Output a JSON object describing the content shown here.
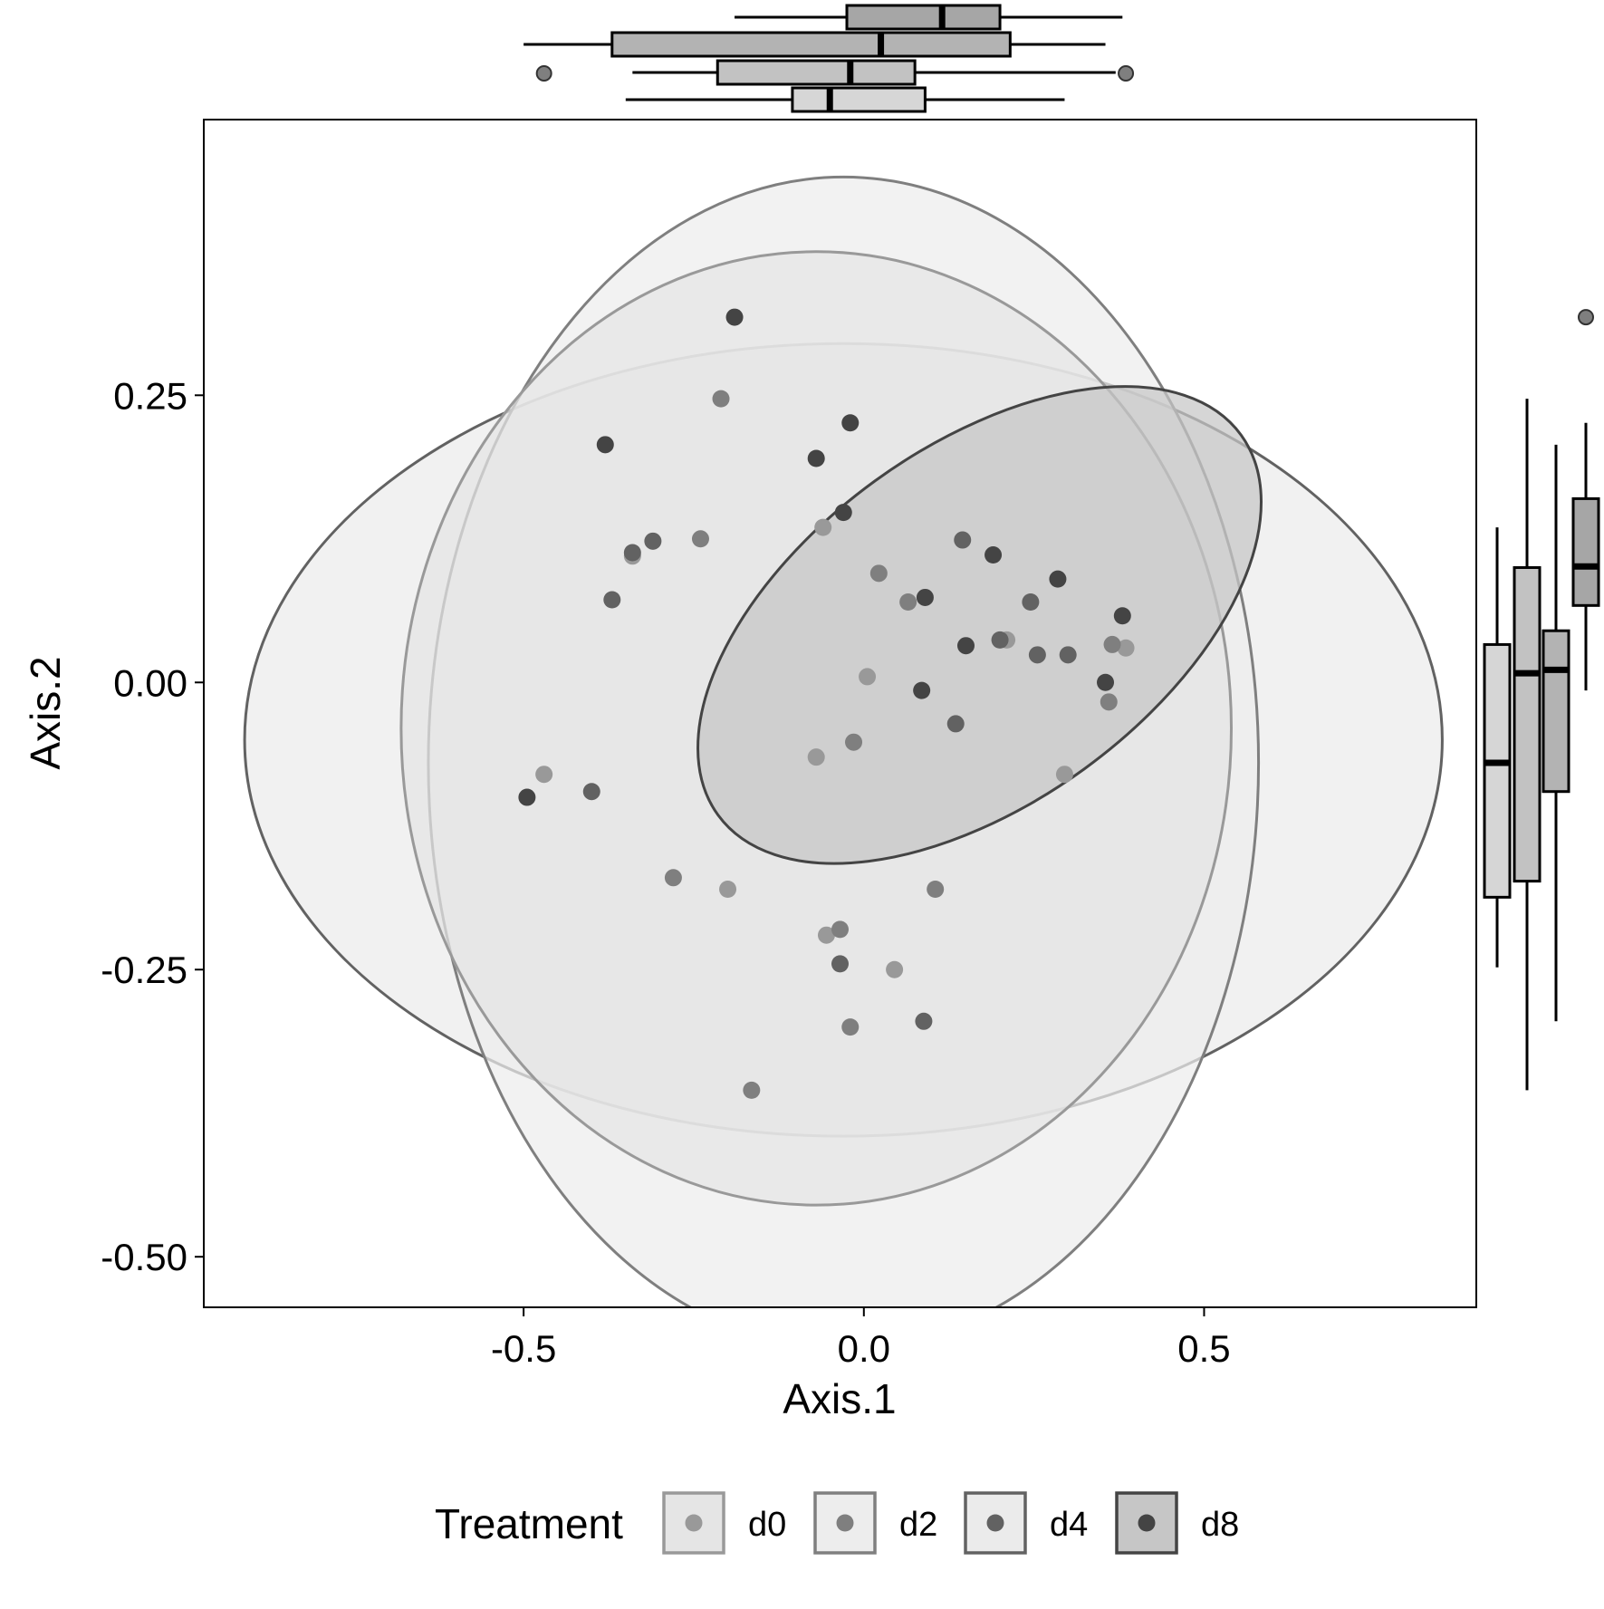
{
  "chart_data": {
    "type": "scatter",
    "title": "",
    "xlabel": "Axis.1",
    "ylabel": "Axis.2",
    "xlim": [
      -0.97,
      0.9
    ],
    "ylim": [
      -0.544,
      0.49
    ],
    "x_ticks": [
      "-0.5",
      "0.0",
      "0.5"
    ],
    "x_tick_values": [
      -0.5,
      0.0,
      0.5
    ],
    "y_ticks": [
      "0.25",
      "0.00",
      "-0.25",
      "-0.50"
    ],
    "y_tick_values": [
      0.25,
      0.0,
      -0.25,
      -0.5
    ],
    "grid": false,
    "legend": {
      "title": "Treatment",
      "position": "bottom",
      "entries": [
        "d0",
        "d2",
        "d4",
        "d8"
      ]
    },
    "colors": {
      "d0": "#999999",
      "d2": "#7f7f7f",
      "d4": "#626262",
      "d8": "#444444",
      "ellipse_fill_d0": "#e5e5e5",
      "ellipse_fill_d2": "#ededed",
      "ellipse_fill_d4": "#ebebeb",
      "ellipse_fill_d8": "#c6c6c6",
      "box_fill_d0": "#d6d6d6",
      "box_fill_d2": "#c2c2c2",
      "box_fill_d4": "#b3b3b3",
      "box_fill_d8": "#a6a6a6"
    },
    "series": [
      {
        "name": "d0",
        "points": [
          [
            -0.34,
            0.11
          ],
          [
            -0.47,
            -0.08
          ],
          [
            -0.2,
            -0.18
          ],
          [
            -0.07,
            -0.065
          ],
          [
            0.005,
            0.005
          ],
          [
            -0.06,
            0.135
          ],
          [
            0.045,
            -0.25
          ],
          [
            0.21,
            0.037
          ],
          [
            0.295,
            -0.08
          ],
          [
            0.385,
            0.03
          ],
          [
            -0.055,
            -0.22
          ]
        ],
        "ellipse": {
          "cx": -0.07,
          "cy": -0.04,
          "rx": 0.61,
          "ry": 0.415,
          "angle": 0
        }
      },
      {
        "name": "d2",
        "points": [
          [
            -0.21,
            0.247
          ],
          [
            -0.24,
            0.125
          ],
          [
            -0.28,
            -0.17
          ],
          [
            -0.165,
            -0.355
          ],
          [
            -0.02,
            -0.3
          ],
          [
            -0.035,
            -0.215
          ],
          [
            -0.015,
            -0.052
          ],
          [
            0.022,
            0.095
          ],
          [
            0.065,
            0.07
          ],
          [
            0.105,
            -0.18
          ],
          [
            0.365,
            0.033
          ],
          [
            0.36,
            -0.017
          ]
        ],
        "ellipse": {
          "cx": -0.03,
          "cy": -0.07,
          "rx": 0.61,
          "ry": 0.51,
          "angle": 0
        }
      },
      {
        "name": "d4",
        "points": [
          [
            -0.34,
            0.113
          ],
          [
            -0.31,
            0.123
          ],
          [
            -0.37,
            0.072
          ],
          [
            -0.4,
            -0.095
          ],
          [
            -0.035,
            -0.245
          ],
          [
            0.088,
            -0.295
          ],
          [
            0.135,
            -0.036
          ],
          [
            0.145,
            0.124
          ],
          [
            0.2,
            0.037
          ],
          [
            0.245,
            0.07
          ],
          [
            0.255,
            0.024
          ],
          [
            0.3,
            0.024
          ]
        ],
        "ellipse": {
          "cx": -0.03,
          "cy": -0.05,
          "rx": 0.88,
          "ry": 0.345,
          "angle": 0
        }
      },
      {
        "name": "d8",
        "points": [
          [
            -0.19,
            0.318
          ],
          [
            -0.38,
            0.207
          ],
          [
            -0.495,
            -0.1
          ],
          [
            -0.02,
            0.226
          ],
          [
            -0.07,
            0.195
          ],
          [
            -0.03,
            0.148
          ],
          [
            0.085,
            -0.007
          ],
          [
            0.09,
            0.074
          ],
          [
            0.19,
            0.111
          ],
          [
            0.285,
            0.09
          ],
          [
            0.38,
            0.058
          ],
          [
            0.355,
            0.0
          ],
          [
            0.15,
            0.032
          ]
        ],
        "ellipse": {
          "cx": 0.17,
          "cy": 0.05,
          "rx": 0.475,
          "ry": 0.155,
          "angle": 36
        }
      }
    ],
    "marginal_boxplots": {
      "axis1": [
        {
          "group": "d0",
          "whisker_low": -0.35,
          "q1": -0.105,
          "median": -0.05,
          "q3": 0.09,
          "whisker_high": 0.295,
          "outliers": []
        },
        {
          "group": "d2",
          "whisker_low": -0.34,
          "q1": -0.215,
          "median": -0.02,
          "q3": 0.075,
          "whisker_high": 0.37,
          "outliers": [
            -0.47,
            0.385
          ]
        },
        {
          "group": "d4",
          "whisker_low": -0.5,
          "q1": -0.37,
          "median": 0.025,
          "q3": 0.215,
          "whisker_high": 0.355,
          "outliers": []
        },
        {
          "group": "d8",
          "whisker_low": -0.19,
          "q1": -0.025,
          "median": 0.115,
          "q3": 0.2,
          "whisker_high": 0.38,
          "outliers": []
        }
      ],
      "axis2": [
        {
          "group": "d0",
          "whisker_low": -0.248,
          "q1": -0.187,
          "median": -0.07,
          "q3": 0.033,
          "whisker_high": 0.135,
          "outliers": []
        },
        {
          "group": "d2",
          "whisker_low": -0.355,
          "q1": -0.173,
          "median": 0.008,
          "q3": 0.1,
          "whisker_high": 0.247,
          "outliers": []
        },
        {
          "group": "d4",
          "whisker_low": -0.295,
          "q1": -0.095,
          "median": 0.011,
          "q3": 0.045,
          "whisker_high": 0.207,
          "outliers": []
        },
        {
          "group": "d8",
          "whisker_low": -0.007,
          "q1": 0.067,
          "median": 0.101,
          "q3": 0.16,
          "whisker_high": 0.226,
          "outliers": [
            0.318
          ]
        }
      ]
    }
  }
}
